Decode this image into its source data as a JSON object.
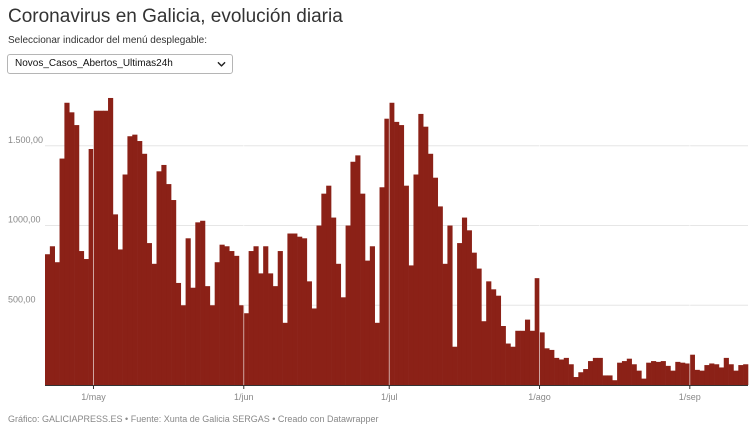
{
  "title": "Coronavirus en Galicia, evolución diaria",
  "subtitle": "Seleccionar indicador del menú desplegable:",
  "dropdown": {
    "selected": "Novos_Casos_Abertos_Ultimas24h"
  },
  "footer": "Gráfico: GALICIAPRESS.ES • Fuente: Xunta de Galicia SERGAS • Creado con Datawrapper",
  "colors": {
    "bar": "#8b2117",
    "axis": "#333333",
    "tick_text": "#888888"
  },
  "chart_data": {
    "type": "bar",
    "title": "Coronavirus en Galicia, evolución diaria",
    "series": [
      {
        "name": "Novos_Casos_Abertos_Ultimas24h"
      }
    ],
    "ylim": [
      0,
      1850
    ],
    "y_ticks": [
      500,
      1000,
      1500
    ],
    "y_tick_labels": [
      "500,00",
      "1000,00",
      "1.500,00"
    ],
    "x_ticks": [
      {
        "label": "1/may",
        "index": 10
      },
      {
        "label": "1/jun",
        "index": 41
      },
      {
        "label": "1/jul",
        "index": 71
      },
      {
        "label": "1/ago",
        "index": 102
      },
      {
        "label": "1/sep",
        "index": 133
      }
    ],
    "values": [
      820,
      870,
      770,
      1420,
      1770,
      1710,
      1630,
      840,
      790,
      1480,
      1720,
      1720,
      1720,
      1800,
      1070,
      850,
      1320,
      1560,
      1570,
      1530,
      1450,
      890,
      760,
      1340,
      1380,
      1260,
      1160,
      640,
      500,
      920,
      610,
      1020,
      1030,
      620,
      500,
      770,
      880,
      870,
      840,
      810,
      500,
      450,
      840,
      870,
      700,
      870,
      700,
      620,
      840,
      390,
      950,
      950,
      930,
      920,
      650,
      480,
      1000,
      1200,
      1250,
      1050,
      760,
      550,
      1000,
      1400,
      1440,
      1200,
      780,
      870,
      390,
      1240,
      1670,
      1770,
      1650,
      1630,
      1250,
      750,
      1320,
      1700,
      1620,
      1450,
      1300,
      1120,
      760,
      1000,
      240,
      890,
      1050,
      970,
      830,
      730,
      400,
      650,
      600,
      560,
      370,
      260,
      240,
      340,
      340,
      410,
      340,
      670,
      330,
      230,
      220,
      170,
      160,
      170,
      130,
      50,
      80,
      100,
      150,
      170,
      170,
      60,
      60,
      30,
      140,
      150,
      165,
      130,
      90,
      40,
      140,
      150,
      145,
      150,
      120,
      90,
      145,
      140,
      135,
      190,
      95,
      90,
      125,
      135,
      130,
      110,
      170,
      130,
      90,
      125,
      130
    ]
  }
}
